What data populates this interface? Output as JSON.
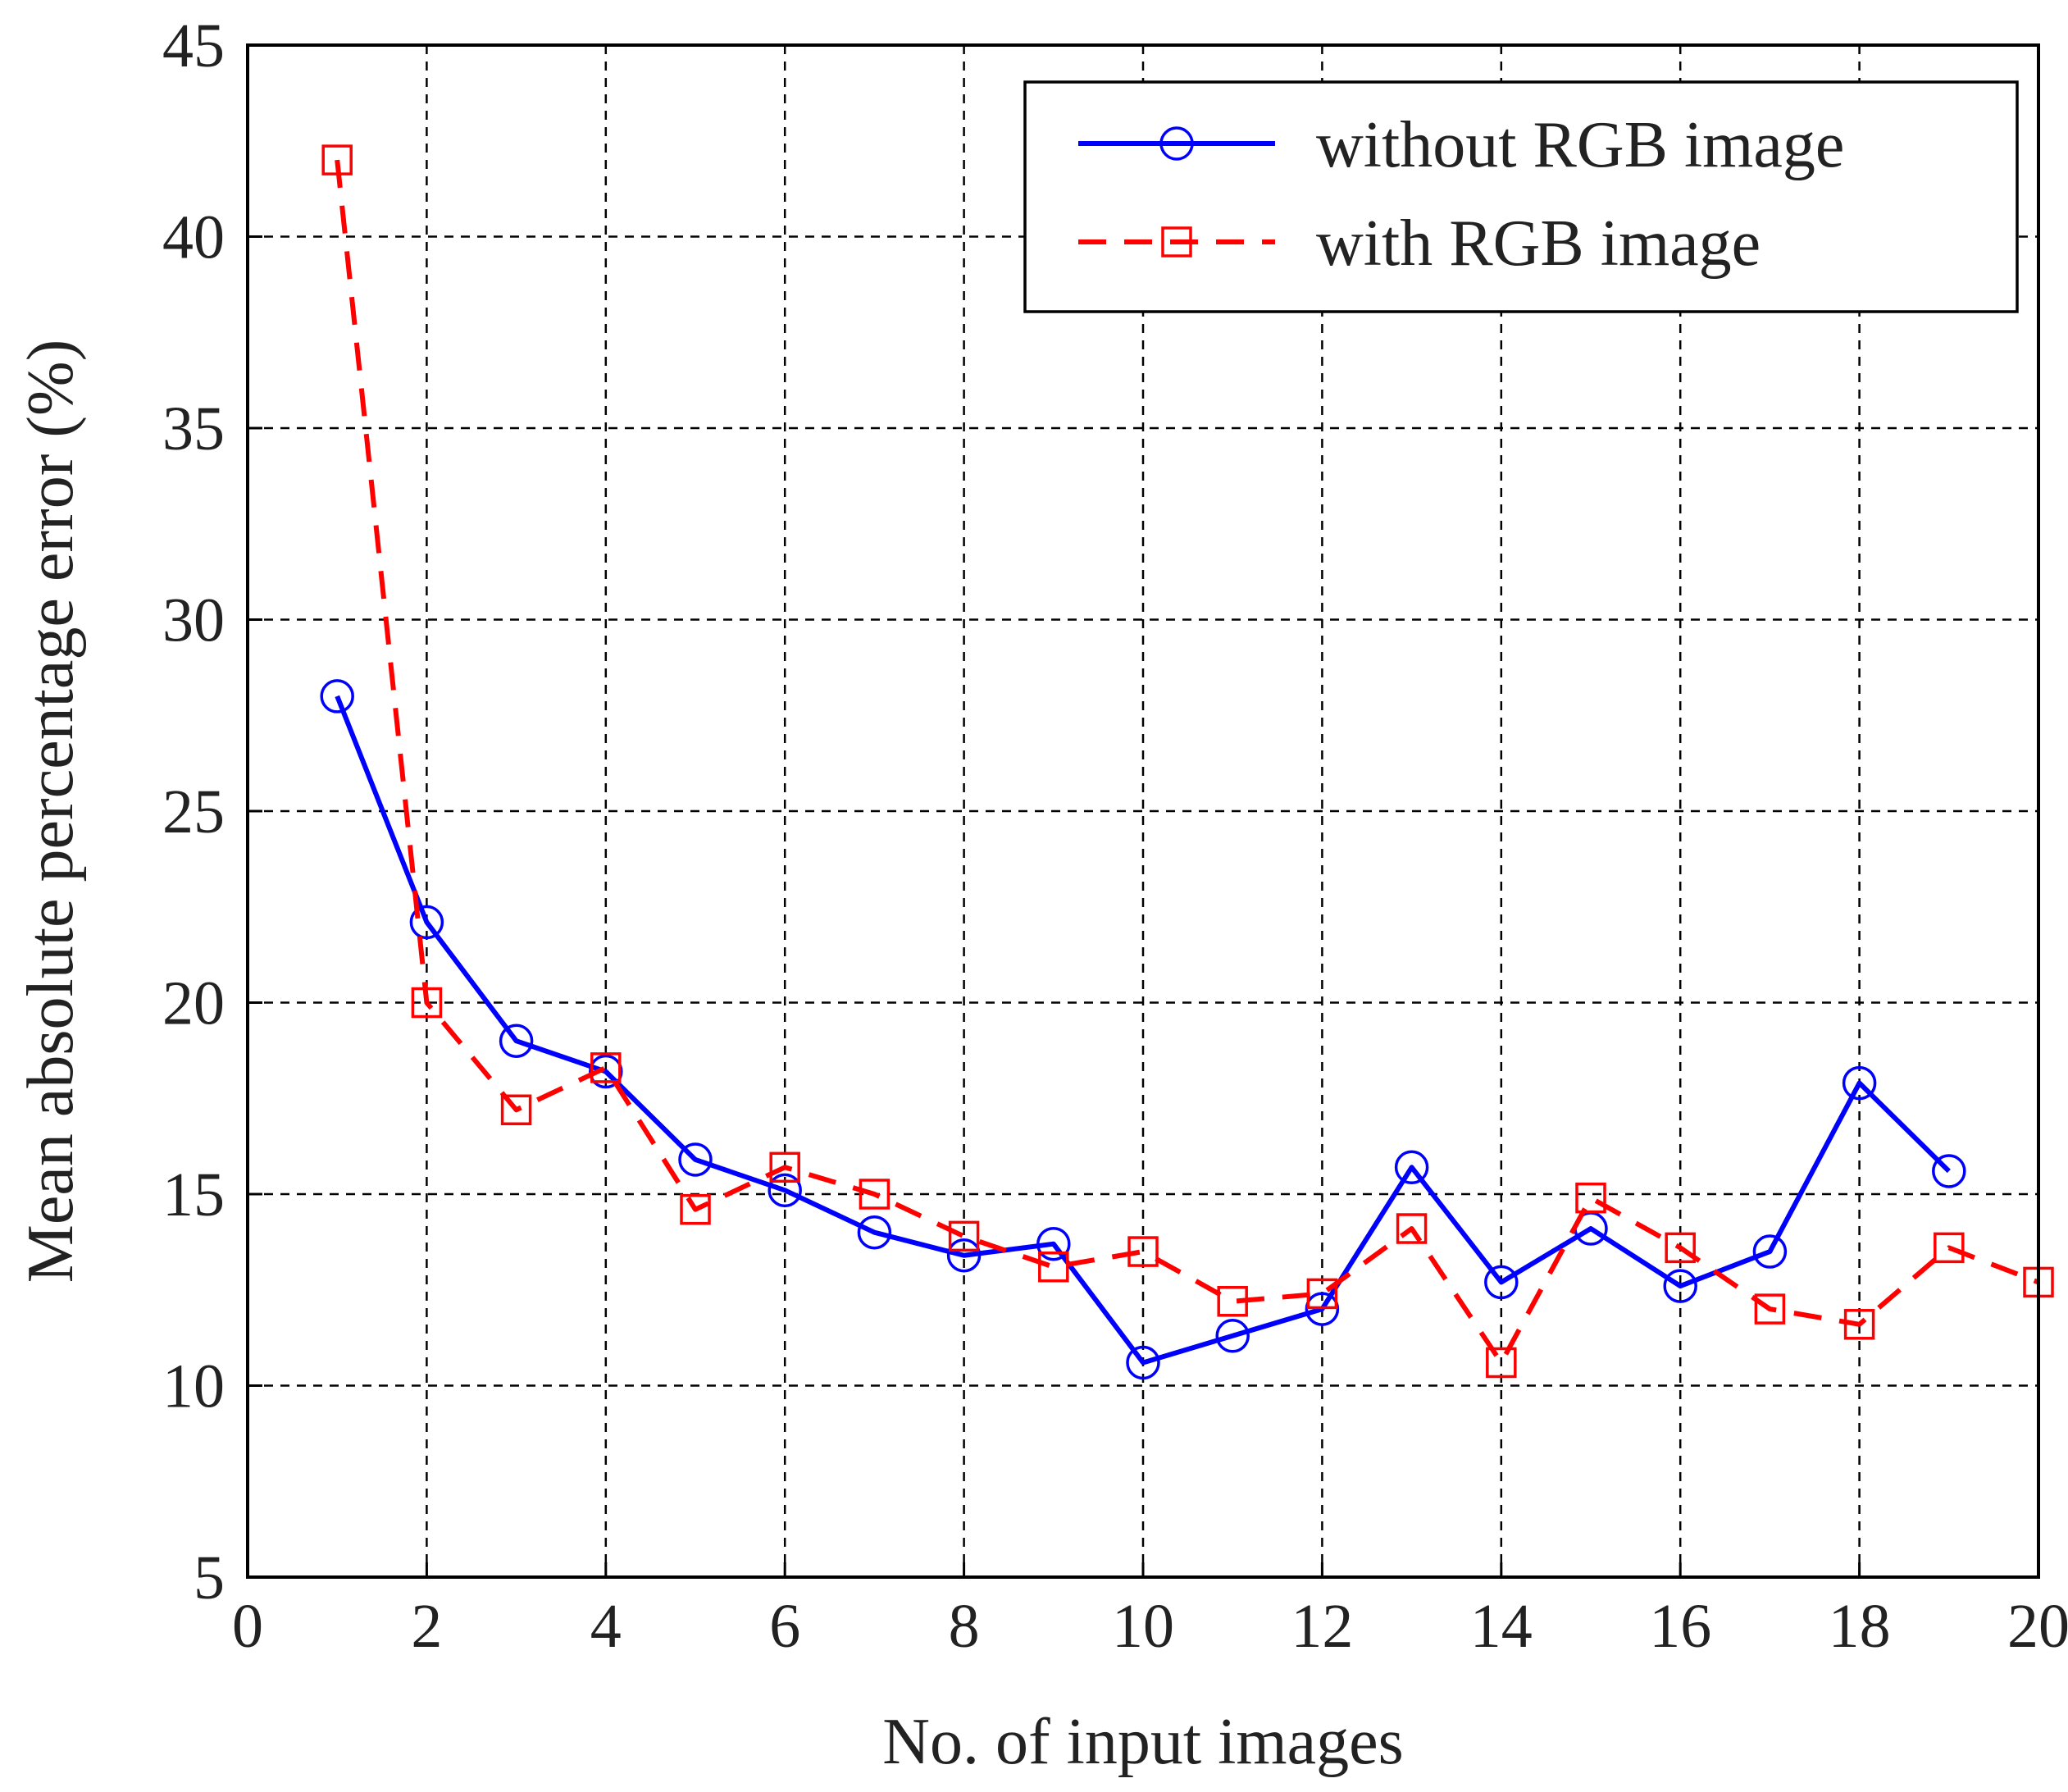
{
  "chart_data": {
    "type": "line",
    "title": "",
    "xlabel": "No. of input images",
    "ylabel": "Mean absolute percentage error (%)",
    "xlim": [
      0,
      20
    ],
    "ylim": [
      5,
      45
    ],
    "xticks": [
      0,
      2,
      4,
      6,
      8,
      10,
      12,
      14,
      16,
      18,
      20
    ],
    "yticks": [
      5,
      10,
      15,
      20,
      25,
      30,
      35,
      40,
      45
    ],
    "grid": true,
    "legend_position": "top-right",
    "series": [
      {
        "name": "without RGB image",
        "color": "#0000ff",
        "line_style": "solid",
        "marker": "circle",
        "x": [
          1,
          2,
          3,
          4,
          5,
          6,
          7,
          8,
          9,
          10,
          11,
          12,
          13,
          14,
          15,
          16,
          17,
          18,
          19
        ],
        "y": [
          28.0,
          22.1,
          19.0,
          18.2,
          15.9,
          15.1,
          14.0,
          13.4,
          13.7,
          10.6,
          11.3,
          12.0,
          15.7,
          12.7,
          14.1,
          12.6,
          13.5,
          17.9,
          15.6
        ]
      },
      {
        "name": "with RGB image",
        "color": "#ff0000",
        "line_style": "dashed",
        "marker": "square",
        "x": [
          1,
          2,
          3,
          4,
          5,
          6,
          7,
          8,
          9,
          10,
          11,
          12,
          13,
          14,
          15,
          16,
          17,
          18,
          19,
          20
        ],
        "y": [
          42.0,
          20.0,
          17.2,
          18.3,
          14.6,
          15.7,
          15.0,
          13.9,
          13.1,
          13.5,
          12.2,
          12.4,
          14.1,
          10.6,
          14.9,
          13.6,
          12.0,
          11.6,
          13.6,
          12.7
        ]
      }
    ]
  }
}
